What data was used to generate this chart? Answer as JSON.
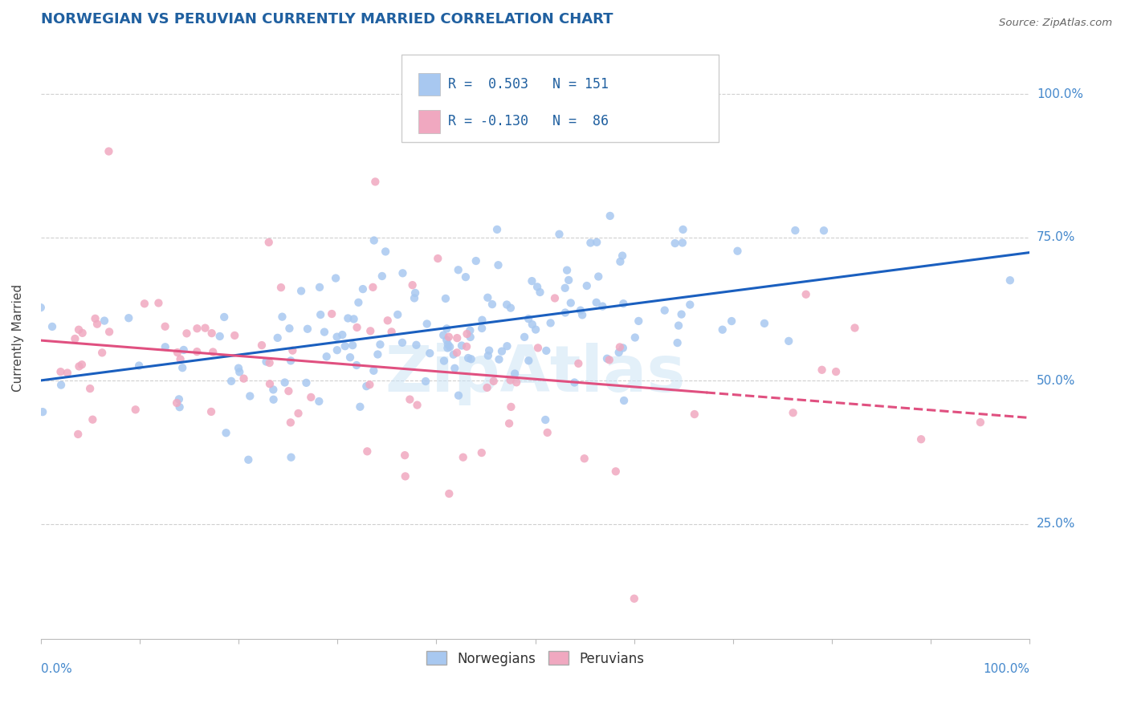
{
  "title": "NORWEGIAN VS PERUVIAN CURRENTLY MARRIED CORRELATION CHART",
  "source": "Source: ZipAtlas.com",
  "ylabel": "Currently Married",
  "yticks": [
    "25.0%",
    "50.0%",
    "75.0%",
    "100.0%"
  ],
  "ytick_vals": [
    0.25,
    0.5,
    0.75,
    1.0
  ],
  "norwegian_color": "#a8c8f0",
  "peruvian_color": "#f0a8c0",
  "norwegian_line_color": "#1a5fbf",
  "peruvian_line_color": "#e05080",
  "title_color": "#2060a0",
  "axis_label_color": "#4488cc",
  "legend_text_color": "#2060a0",
  "watermark_color": "#cce4f5",
  "n_norwegian": 151,
  "n_peruvian": 86,
  "seed": 12345
}
